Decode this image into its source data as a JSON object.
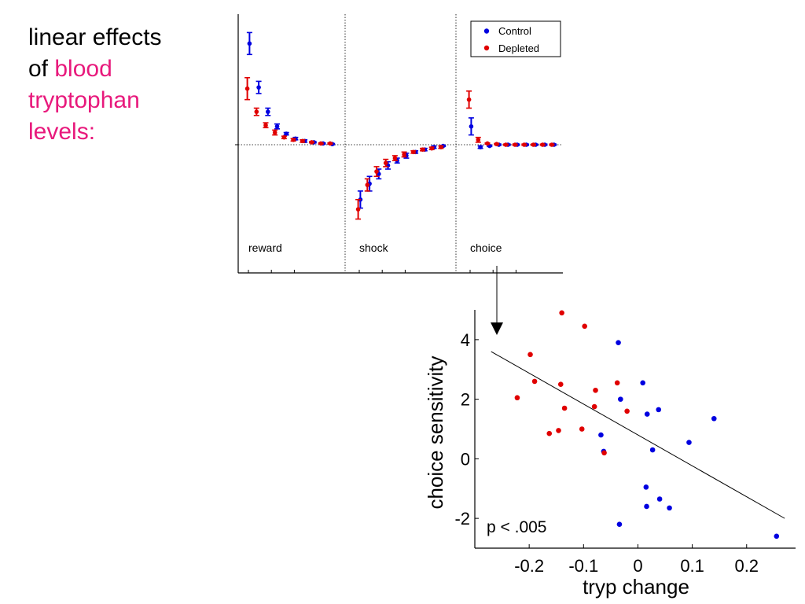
{
  "heading": {
    "part1": "linear effects",
    "part2": "of",
    "part3": "blood",
    "part4": "tryptophan",
    "part5": "levels:"
  },
  "colors": {
    "control": "#0000e0",
    "depleted": "#e00000",
    "highlight": "#e8197c"
  },
  "chart_data": [
    {
      "type": "line",
      "grid": false,
      "legend_position": "top-right",
      "legend": [
        "Control",
        "Depleted"
      ],
      "y_tick_labels": [
        ""
      ],
      "panels": [
        {
          "label": "reward",
          "series": [
            {
              "name": "Control",
              "values": [
                0.83,
                0.47,
                0.27,
                0.15,
                0.09,
                0.05,
                0.03,
                0.02,
                0.01,
                0.005
              ],
              "err": [
                0.09,
                0.05,
                0.03,
                0.02,
                0.01,
                0.01,
                0.01,
                0.005,
                0.005,
                0.005
              ]
            },
            {
              "name": "Depleted",
              "values": [
                0.46,
                0.27,
                0.16,
                0.1,
                0.06,
                0.04,
                0.03,
                0.02,
                0.01,
                0.01
              ],
              "err": [
                0.09,
                0.03,
                0.02,
                0.02,
                0.01,
                0.01,
                0.01,
                0.005,
                0.005,
                0.005
              ]
            }
          ]
        },
        {
          "label": "shock",
          "series": [
            {
              "name": "Control",
              "values": [
                -0.45,
                -0.32,
                -0.24,
                -0.17,
                -0.13,
                -0.09,
                -0.06,
                -0.04,
                -0.02,
                -0.01
              ],
              "err": [
                0.07,
                0.06,
                0.04,
                0.03,
                0.02,
                0.02,
                0.01,
                0.01,
                0.01,
                0.005
              ]
            },
            {
              "name": "Depleted",
              "values": [
                -0.53,
                -0.33,
                -0.22,
                -0.15,
                -0.11,
                -0.08,
                -0.06,
                -0.04,
                -0.03,
                -0.02
              ],
              "err": [
                0.08,
                0.05,
                0.04,
                0.03,
                0.02,
                0.02,
                0.01,
                0.01,
                0.01,
                0.01
              ]
            }
          ]
        },
        {
          "label": "choice",
          "series": [
            {
              "name": "Control",
              "values": [
                0.15,
                -0.02,
                -0.01,
                0,
                0,
                0,
                0,
                0,
                0,
                0
              ],
              "err": [
                0.07,
                0.01,
                0.005,
                0.005,
                0.005,
                0.005,
                0.005,
                0.005,
                0.005,
                0.005
              ]
            },
            {
              "name": "Depleted",
              "values": [
                0.37,
                0.04,
                0.01,
                0.005,
                0,
                0,
                0,
                0,
                0,
                0
              ],
              "err": [
                0.07,
                0.02,
                0.005,
                0.005,
                0.005,
                0.005,
                0.005,
                0.005,
                0.005,
                0.005
              ]
            }
          ]
        }
      ]
    },
    {
      "type": "scatter",
      "xlabel": "tryp change",
      "ylabel": "choice sensitivity",
      "xlim": [
        -0.3,
        0.29
      ],
      "ylim": [
        -3,
        5
      ],
      "xticks": [
        -0.2,
        -0.1,
        0,
        0.1,
        0.2
      ],
      "xtick_labels": [
        "-0.2",
        "-0.1",
        "0",
        "0.1",
        "0.2"
      ],
      "yticks": [
        -2,
        0,
        2,
        4
      ],
      "ytick_labels": [
        "-2",
        "0",
        "2",
        "4"
      ],
      "annotation": "p < .005",
      "fit_line": {
        "x": [
          -0.27,
          0.27
        ],
        "y": [
          3.6,
          -2.0
        ]
      },
      "series": [
        {
          "name": "Control",
          "points": [
            [
              -0.036,
              3.9
            ],
            [
              0.009,
              2.55
            ],
            [
              -0.032,
              2.0
            ],
            [
              0.017,
              1.5
            ],
            [
              0.038,
              1.65
            ],
            [
              0.094,
              0.55
            ],
            [
              0.14,
              1.35
            ],
            [
              -0.068,
              0.8
            ],
            [
              -0.063,
              0.25
            ],
            [
              0.027,
              0.3
            ],
            [
              0.015,
              -0.95
            ],
            [
              0.04,
              -1.35
            ],
            [
              0.016,
              -1.6
            ],
            [
              0.058,
              -1.65
            ],
            [
              -0.034,
              -2.2
            ],
            [
              0.255,
              -2.6
            ]
          ]
        },
        {
          "name": "Depleted",
          "points": [
            [
              -0.14,
              4.9
            ],
            [
              -0.098,
              4.45
            ],
            [
              -0.198,
              3.5
            ],
            [
              -0.19,
              2.6
            ],
            [
              -0.142,
              2.5
            ],
            [
              -0.038,
              2.55
            ],
            [
              -0.078,
              2.3
            ],
            [
              -0.222,
              2.05
            ],
            [
              -0.135,
              1.7
            ],
            [
              -0.08,
              1.75
            ],
            [
              -0.02,
              1.6
            ],
            [
              -0.163,
              0.85
            ],
            [
              -0.146,
              0.95
            ],
            [
              -0.103,
              1.0
            ],
            [
              -0.062,
              0.2
            ]
          ]
        }
      ]
    }
  ]
}
